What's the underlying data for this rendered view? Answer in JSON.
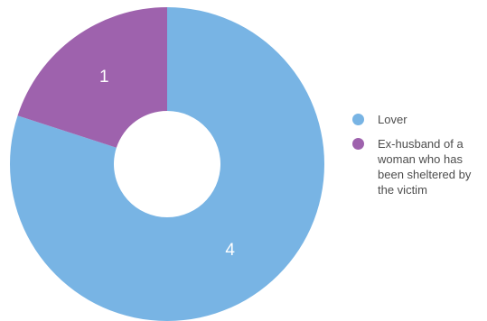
{
  "chart_data": {
    "type": "pie",
    "donut": true,
    "categories": [
      "Lover",
      "Ex-husband of a woman who has been sheltered by the victim"
    ],
    "values": [
      4,
      1
    ],
    "data_labels": [
      "4",
      "1"
    ],
    "colors": [
      "#78b4e4",
      "#9e62ad"
    ],
    "start_angle_deg": 0,
    "direction": "clockwise",
    "legend_position": "right"
  },
  "legend": {
    "items": [
      {
        "label": "Lover",
        "color": "#78b4e4"
      },
      {
        "label": "Ex-husband of a woman who has been sheltered by the victim",
        "color": "#9e62ad"
      }
    ]
  }
}
